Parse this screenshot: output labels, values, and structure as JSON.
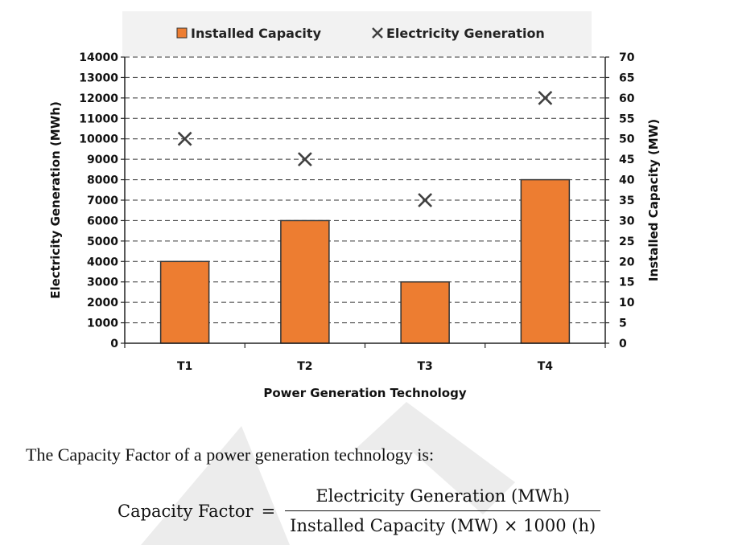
{
  "chart_data": {
    "type": "bar+scatter",
    "categories": [
      "T1",
      "T2",
      "T3",
      "T4"
    ],
    "xlabel": "Power Generation Technology",
    "series": [
      {
        "name": "Installed Capacity",
        "type": "bar",
        "axis": "right",
        "values": [
          20,
          30,
          15,
          40
        ],
        "color": "#ED7D31"
      },
      {
        "name": "Electricity Generation",
        "type": "scatter",
        "axis": "left",
        "values": [
          10000,
          9000,
          7000,
          12000
        ],
        "color": "#404040",
        "marker": "x"
      }
    ],
    "y_left": {
      "label": "Electricity Generation (MWh)",
      "min": 0,
      "max": 14000,
      "step": 1000
    },
    "y_right": {
      "label": "Installed Capacity (MW)",
      "min": 0,
      "max": 70,
      "step": 5
    },
    "grid": "dashed horizontal",
    "legend": "top"
  },
  "text": {
    "intro": "The Capacity Factor of a power generation technology is:",
    "formula": {
      "lhs": "Capacity Factor",
      "eq": "=",
      "numerator": "Electricity Generation (MWh)",
      "denominator": "Installed Capacity (MW) × 1000 (h)"
    }
  },
  "colors": {
    "bar_fill": "#ED7D31",
    "bar_stroke": "#333333",
    "marker": "#404040",
    "legend_bg": "#F2F2F2",
    "watermark": "#E8E8E8"
  }
}
